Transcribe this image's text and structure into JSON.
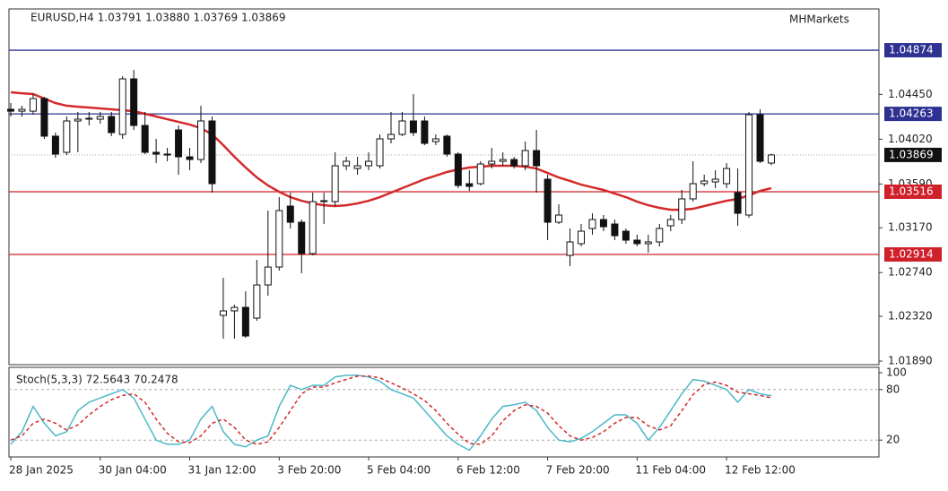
{
  "chart_data": [
    {
      "type": "candlestick",
      "title": "EURUSD,H4  1.03791 1.03880 1.03769 1.03869",
      "brand": "MHMarkets",
      "categories": [
        "28 Jan 2025",
        null,
        null,
        null,
        null,
        null,
        null,
        null,
        "30 Jan 04:00",
        null,
        null,
        null,
        null,
        null,
        null,
        null,
        "31 Jan 12:00",
        null,
        null,
        null,
        null,
        null,
        null,
        null,
        "3 Feb 20:00",
        null,
        null,
        null,
        null,
        null,
        null,
        null,
        "5 Feb 04:00",
        null,
        null,
        null,
        null,
        null,
        null,
        null,
        "6 Feb 12:00",
        null,
        null,
        null,
        null,
        null,
        null,
        null,
        "7 Feb 20:00",
        null,
        null,
        null,
        null,
        null,
        null,
        null,
        "11 Feb 04:00",
        null,
        null,
        null,
        null,
        null,
        null,
        null,
        "12 Feb 12:00",
        null,
        null,
        null,
        null
      ],
      "open": [
        1.04307,
        1.04289,
        1.04289,
        1.0441,
        1.04049,
        1.03894,
        1.04195,
        1.04212,
        1.04212,
        1.04238,
        1.04066,
        1.04599,
        1.04152,
        1.03894,
        1.03877,
        1.04109,
        1.03851,
        1.03825,
        1.04195,
        1.02329,
        1.02372,
        1.02406,
        1.02303,
        1.02621,
        1.02793,
        1.03378,
        1.03223,
        1.02922,
        1.03421,
        1.03421,
        1.03765,
        1.03739,
        1.03765,
        1.03765,
        1.04023,
        1.04066,
        1.04195,
        1.04195,
        1.03997,
        1.04049,
        1.03877,
        1.03593,
        1.03593,
        1.03782,
        1.03808,
        1.03825,
        1.03765,
        1.03911,
        1.03636,
        1.03223,
        1.02905,
        1.03017,
        1.03163,
        1.03249,
        1.03206,
        1.03137,
        1.03051,
        1.03017,
        1.03034,
        1.03189,
        1.03249,
        1.03447,
        1.03593,
        1.0361,
        1.03593,
        1.03507,
        1.03292,
        1.04255,
        1.03791
      ],
      "high": [
        1.04367,
        1.04341,
        1.04453,
        1.04427,
        1.04083,
        1.04238,
        1.04281,
        1.04281,
        1.04281,
        1.04281,
        1.04625,
        1.04685,
        1.04281,
        1.04023,
        1.03937,
        1.04152,
        1.03937,
        1.04341,
        1.04238,
        1.0269,
        1.02432,
        1.02561,
        1.02862,
        1.03335,
        1.03464,
        1.03507,
        1.03249,
        1.03507,
        1.03507,
        1.03894,
        1.03851,
        1.03851,
        1.03894,
        1.04066,
        1.04281,
        1.04281,
        1.04453,
        1.04238,
        1.04066,
        1.04066,
        1.03894,
        1.03722,
        1.03808,
        1.03937,
        1.03894,
        1.03851,
        1.03997,
        1.04109,
        1.03679,
        1.03395,
        1.03163,
        1.03206,
        1.03309,
        1.03292,
        1.03249,
        1.03163,
        1.03103,
        1.03103,
        1.03206,
        1.03292,
        1.03533,
        1.03808,
        1.03679,
        1.03722,
        1.03791,
        1.03739,
        1.04281,
        1.04307,
        1.0388
      ],
      "low": [
        1.04238,
        1.04238,
        1.04255,
        1.04023,
        1.03842,
        1.03868,
        1.03894,
        1.04152,
        1.04169,
        1.04049,
        1.04023,
        1.04109,
        1.03877,
        1.03791,
        1.03808,
        1.03679,
        1.03722,
        1.03791,
        1.03507,
        1.02105,
        1.02105,
        1.02114,
        1.02277,
        1.02518,
        1.02759,
        1.03163,
        1.02733,
        1.02905,
        1.03206,
        1.03378,
        1.03722,
        1.03679,
        1.03722,
        1.03739,
        1.0398,
        1.04049,
        1.04049,
        1.03963,
        1.03963,
        1.03851,
        1.0355,
        1.03524,
        1.03576,
        1.03739,
        1.03765,
        1.03739,
        1.03722,
        1.03507,
        1.03051,
        1.03206,
        1.02802,
        1.02991,
        1.03103,
        1.03137,
        1.03051,
        1.03017,
        1.02991,
        1.02931,
        1.02991,
        1.03137,
        1.03206,
        1.03421,
        1.03567,
        1.0355,
        1.0355,
        1.03189,
        1.03266,
        1.03791,
        1.03769
      ],
      "close": [
        1.04289,
        1.04307,
        1.0441,
        1.04049,
        1.03877,
        1.04195,
        1.04212,
        1.04221,
        1.04238,
        1.04083,
        1.04599,
        1.04152,
        1.03894,
        1.03877,
        1.03868,
        1.03851,
        1.03825,
        1.04195,
        1.03593,
        1.02372,
        1.02406,
        1.02131,
        1.02621,
        1.02793,
        1.03335,
        1.03223,
        1.02922,
        1.03421,
        1.0343,
        1.03765,
        1.03808,
        1.03765,
        1.03808,
        1.04023,
        1.04066,
        1.04195,
        1.04083,
        1.0398,
        1.04023,
        1.03877,
        1.03576,
        1.03567,
        1.03782,
        1.03808,
        1.03825,
        1.03765,
        1.03911,
        1.03765,
        1.03223,
        1.03292,
        1.03034,
        1.03137,
        1.03249,
        1.0318,
        1.03094,
        1.03051,
        1.03017,
        1.03034,
        1.03163,
        1.03249,
        1.03447,
        1.03593,
        1.03619,
        1.03636,
        1.03739,
        1.03309,
        1.04255,
        1.03808,
        1.03869
      ],
      "overlays": [
        {
          "color": "#d42a2a",
          "values": [
            1.0447,
            1.04461,
            1.04453,
            1.0441,
            1.04367,
            1.04341,
            1.04332,
            1.04324,
            1.04315,
            1.04307,
            1.04298,
            1.04289,
            1.04264,
            1.04238,
            1.04212,
            1.04186,
            1.0416,
            1.04126,
            1.04066,
            1.03963,
            1.03851,
            1.03748,
            1.03653,
            1.03576,
            1.03515,
            1.03464,
            1.03429,
            1.03404,
            1.03386,
            1.03378,
            1.03386,
            1.03404,
            1.03429,
            1.03464,
            1.03507,
            1.0355,
            1.03593,
            1.03636,
            1.0367,
            1.03705,
            1.0373,
            1.03748,
            1.03756,
            1.03765,
            1.03765,
            1.03765,
            1.03756,
            1.03739,
            1.03696,
            1.03653,
            1.03619,
            1.03584,
            1.03558,
            1.03533,
            1.03498,
            1.03464,
            1.03421,
            1.03386,
            1.03361,
            1.03343,
            1.03343,
            1.03352,
            1.03378,
            1.03404,
            1.03429,
            1.03447,
            1.03481,
            1.03524,
            1.0355
          ]
        }
      ],
      "levels": [
        {
          "value": 1.04874,
          "color": "#2e3192"
        },
        {
          "value": 1.04263,
          "color": "#2e3192"
        },
        {
          "value": 1.03516,
          "color": "#d0202a"
        },
        {
          "value": 1.02914,
          "color": "#d0202a"
        }
      ],
      "ylim": [
        1.01856,
        1.0527
      ],
      "yticks": [
        {
          "value": 1.0445,
          "label": "1.04450"
        },
        {
          "value": 1.0402,
          "label": "1.04020"
        },
        {
          "value": 1.0359,
          "label": "1.03590"
        },
        {
          "value": 1.0317,
          "label": "1.03170"
        },
        {
          "value": 1.0274,
          "label": "1.02740"
        },
        {
          "value": 1.0232,
          "label": "1.02320"
        },
        {
          "value": 1.0189,
          "label": "1.01890"
        }
      ]
    },
    {
      "type": "line",
      "title": "Stoch(5,3,3) 72.5643 70.2478",
      "series": [
        {
          "color": "#4cb8c8",
          "values": [
            15,
            30,
            60,
            40,
            25,
            30,
            55,
            65,
            70,
            75,
            80,
            70,
            45,
            20,
            15,
            15,
            20,
            45,
            60,
            30,
            15,
            12,
            20,
            25,
            60,
            85,
            80,
            85,
            85,
            95,
            97,
            97,
            95,
            90,
            80,
            75,
            70,
            55,
            40,
            25,
            15,
            8,
            25,
            45,
            60,
            62,
            65,
            55,
            35,
            20,
            18,
            22,
            30,
            40,
            50,
            50,
            40,
            20,
            35,
            55,
            75,
            92,
            90,
            85,
            80,
            65,
            80,
            75,
            72.5643
          ]
        },
        {
          "color": "#d42a2a",
          "dash": true,
          "values": [
            20,
            25,
            40,
            45,
            40,
            32,
            38,
            50,
            60,
            68,
            73,
            75,
            65,
            45,
            28,
            18,
            17,
            25,
            40,
            45,
            35,
            20,
            15,
            18,
            35,
            55,
            75,
            83,
            83,
            88,
            92,
            96,
            96,
            94,
            88,
            82,
            75,
            67,
            55,
            40,
            27,
            16,
            15,
            25,
            43,
            55,
            62,
            60,
            52,
            37,
            25,
            20,
            23,
            30,
            40,
            47,
            47,
            37,
            32,
            37,
            55,
            74,
            86,
            89,
            85,
            77,
            75,
            73,
            70.2478
          ]
        }
      ],
      "levels": [
        80,
        20
      ],
      "ylim": [
        0,
        100
      ],
      "yticks": [
        100,
        80,
        20
      ]
    }
  ]
}
